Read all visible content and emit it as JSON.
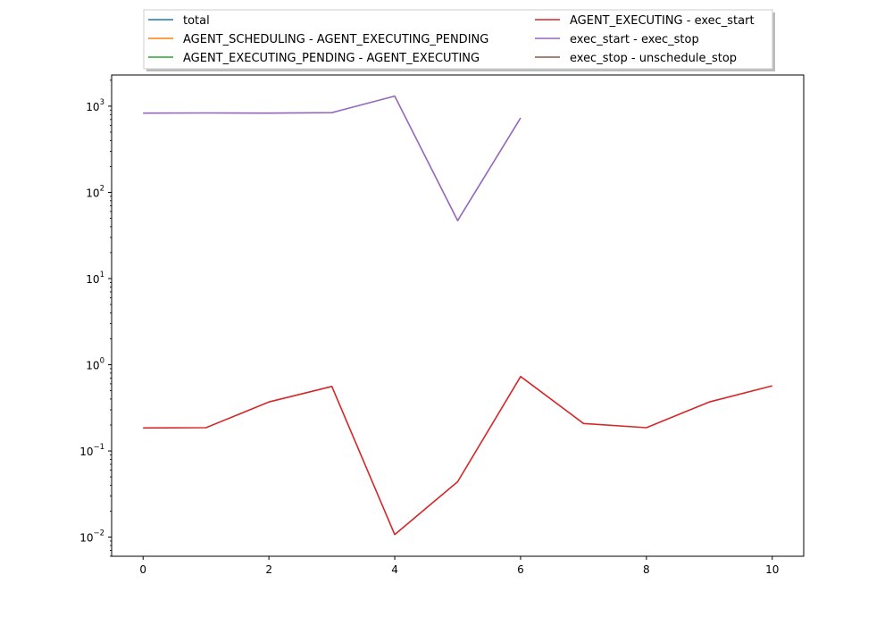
{
  "chart_data": {
    "type": "line",
    "title": "",
    "xlabel": "",
    "ylabel": "",
    "xlim": [
      -0.5,
      10.5
    ],
    "ylim": [
      0.006,
      2300
    ],
    "yscale": "log",
    "grid": false,
    "legend_location": "top-center",
    "legend_columns": 2,
    "x_ticks": [
      0,
      2,
      4,
      6,
      8,
      10
    ],
    "y_ticks": [
      0.01,
      0.1,
      1,
      10,
      100,
      1000
    ],
    "y_tick_labels": [
      {
        "base": "10",
        "exp": "−2"
      },
      {
        "base": "10",
        "exp": "−1"
      },
      {
        "base": "10",
        "exp": "0"
      },
      {
        "base": "10",
        "exp": "1"
      },
      {
        "base": "10",
        "exp": "2"
      },
      {
        "base": "10",
        "exp": "3"
      }
    ],
    "series": [
      {
        "name": "total",
        "color": "#1f77b4",
        "x": [],
        "values": []
      },
      {
        "name": "AGENT_SCHEDULING - AGENT_EXECUTING_PENDING",
        "color": "#ff7f0e",
        "x": [],
        "values": []
      },
      {
        "name": "AGENT_EXECUTING_PENDING - AGENT_EXECUTING",
        "color": "#2ca02c",
        "x": [],
        "values": []
      },
      {
        "name": "AGENT_EXECUTING - exec_start",
        "color": "#d62728",
        "x": [
          0,
          1,
          2,
          3,
          4,
          5,
          6,
          7,
          8,
          9,
          10
        ],
        "values": [
          0.185,
          0.186,
          0.37,
          0.56,
          0.0107,
          0.044,
          0.73,
          0.208,
          0.186,
          0.37,
          0.57
        ]
      },
      {
        "name": "exec_start - exec_stop",
        "color": "#9467bd",
        "x": [
          0,
          1,
          2,
          3,
          4,
          5,
          6
        ],
        "values": [
          830,
          835,
          830,
          840,
          1310,
          47,
          730
        ]
      },
      {
        "name": "exec_stop - unschedule_stop",
        "color": "#8c564b",
        "x": [],
        "values": []
      }
    ]
  }
}
